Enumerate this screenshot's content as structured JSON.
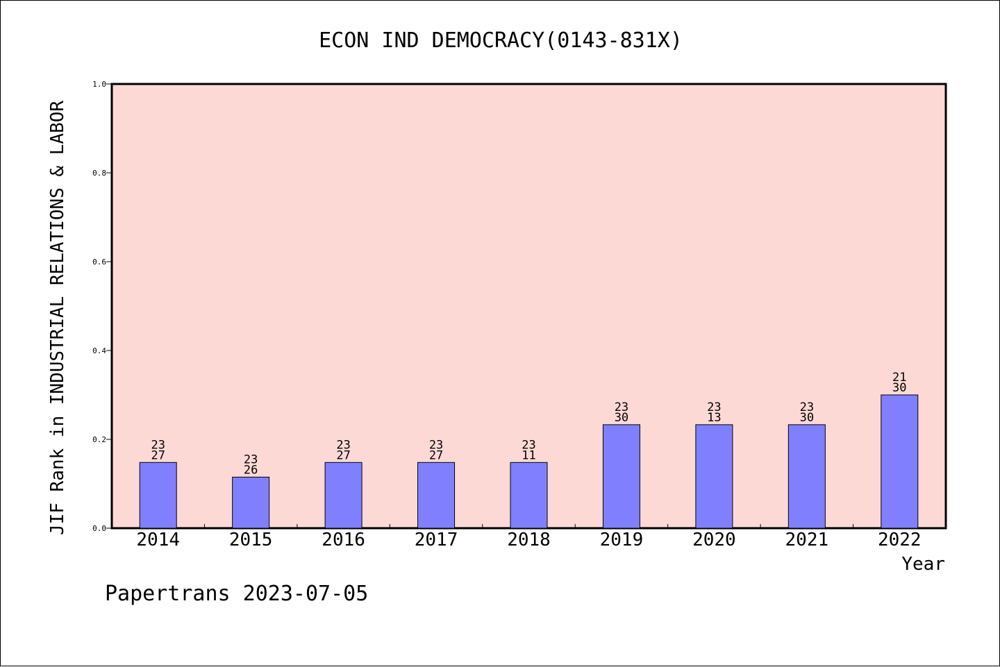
{
  "chart_data": {
    "type": "bar",
    "title": "ECON IND DEMOCRACY(0143-831X)",
    "xlabel": "Year",
    "ylabel": "JIF Rank in INDUSTRIAL RELATIONS & LABOR",
    "categories": [
      "2014",
      "2015",
      "2016",
      "2017",
      "2018",
      "2019",
      "2020",
      "2021",
      "2022"
    ],
    "values": [
      0.148,
      0.115,
      0.148,
      0.148,
      0.148,
      0.233,
      0.233,
      0.233,
      0.3
    ],
    "bar_labels_top": [
      "23",
      "23",
      "23",
      "23",
      "23",
      "23",
      "23",
      "23",
      "21"
    ],
    "bar_labels_bottom": [
      "27",
      "26",
      "27",
      "27",
      "11",
      "30",
      "13",
      "30",
      "30"
    ],
    "ylim": [
      0,
      1.0
    ],
    "yticks": [
      "0.0",
      "0.2",
      "0.4",
      "0.6",
      "0.8",
      "1.0"
    ],
    "grid": false,
    "colors": {
      "plot_background": "#fdd9d6",
      "bar_fill": "#8080ff",
      "bar_stroke": "#000000"
    }
  },
  "footer": "Papertrans 2023-07-05"
}
